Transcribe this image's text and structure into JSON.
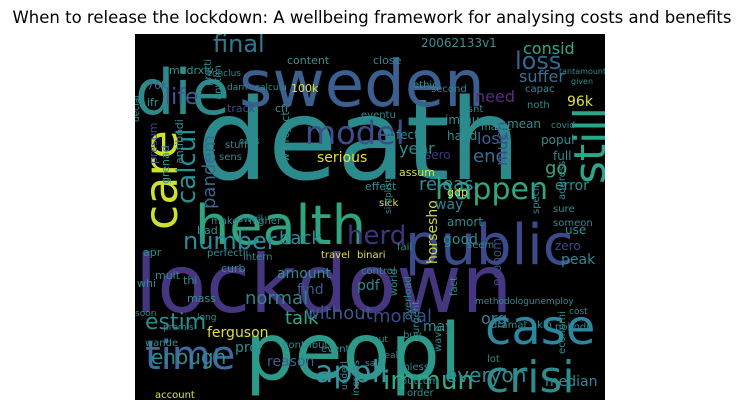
{
  "title": "When to release the lockdown: A wellbeing framework for analysing costs and benefits",
  "cloud": {
    "palette": [
      "#440154",
      "#3b528b",
      "#21908d",
      "#5dc863",
      "#fde725",
      "#31688e",
      "#35b779",
      "#472d7b"
    ],
    "words": [
      {
        "text": "death",
        "color": "#2a8a8c"
      },
      {
        "text": "lockdown",
        "color": "#46357f"
      },
      {
        "text": "peopl",
        "color": "#2b9a89"
      },
      {
        "text": "sweden",
        "color": "#3b5f8f"
      },
      {
        "text": "die",
        "color": "#2c8a8a"
      },
      {
        "text": "health",
        "color": "#2ea580"
      },
      {
        "text": "public",
        "color": "#3b4b8a"
      },
      {
        "text": "care",
        "color": "#cfe12f"
      },
      {
        "text": "still",
        "color": "#2ba68a"
      },
      {
        "text": "case",
        "color": "#2b87a0"
      },
      {
        "text": "crisi",
        "color": "#2f8c8c"
      },
      {
        "text": "time",
        "color": "#3e6aa0"
      },
      {
        "text": "model",
        "color": "#3e4d8b"
      },
      {
        "text": "happen",
        "color": "#32a67f"
      },
      {
        "text": "appli",
        "color": "#3a8fa0"
      },
      {
        "text": "immun",
        "color": "#30a98a"
      },
      {
        "text": "number",
        "color": "#2c8b9a"
      },
      {
        "text": "herd",
        "color": "#41337b"
      },
      {
        "text": "calcul",
        "color": "#2a8f90"
      },
      {
        "text": "life",
        "color": "#3e5b8f"
      },
      {
        "text": "final",
        "color": "#2f7a8e"
      },
      {
        "text": "loss",
        "color": "#31698f"
      },
      {
        "text": "estim",
        "color": "#2e8b8e"
      },
      {
        "text": "enough",
        "color": "#2f8a90"
      },
      {
        "text": "talk",
        "color": "#31a88a"
      },
      {
        "text": "everyon",
        "color": "#2e8c8f"
      },
      {
        "text": "pandem",
        "color": "#3e6591"
      },
      {
        "text": "releas",
        "color": "#2c8b9a"
      },
      {
        "text": "back",
        "color": "#2f8d9a"
      },
      {
        "text": "normal",
        "color": "#2f8590"
      },
      {
        "text": "without",
        "color": "#3a5a8e"
      },
      {
        "text": "mortal",
        "color": "#3b4a89"
      },
      {
        "text": "consid",
        "color": "#36a884"
      },
      {
        "text": "suffer",
        "color": "#3d6f96"
      },
      {
        "text": "need",
        "color": "#5a2f7a"
      },
      {
        "text": "year",
        "color": "#2e8f90"
      },
      {
        "text": "end",
        "color": "#3e6a92"
      },
      {
        "text": "go",
        "color": "#3da57e"
      },
      {
        "text": "lose",
        "color": "#3e6093"
      },
      {
        "text": "much",
        "color": "#3b4e8b"
      },
      {
        "text": "serious",
        "color": "#e2e237"
      },
      {
        "text": "amount",
        "color": "#2f8d92"
      },
      {
        "text": "ferguson",
        "color": "#dde042"
      },
      {
        "text": "median",
        "color": "#2f8a90"
      },
      {
        "text": "good",
        "color": "#2f8b90"
      },
      {
        "text": "org",
        "color": "#3e7a96"
      },
      {
        "text": "may",
        "color": "#2e8f90"
      },
      {
        "text": "96k",
        "color": "#dfe33a"
      },
      {
        "text": "horsesho",
        "color": "#cfdb3b"
      },
      {
        "text": "way",
        "color": "#2f8892"
      },
      {
        "text": "reason",
        "color": "#3e6090"
      },
      {
        "text": "proj",
        "color": "#2e8f90"
      },
      {
        "text": "pdf",
        "color": "#2f8790"
      },
      {
        "text": "find",
        "color": "#3b5a8e"
      },
      {
        "text": "econom",
        "color": "#3b4a89"
      },
      {
        "text": "peak",
        "color": "#2f8790"
      },
      {
        "text": "mean",
        "color": "#2f8f90"
      },
      {
        "text": "popul",
        "color": "#2e8f90"
      },
      {
        "text": "full",
        "color": "#2f8a90"
      },
      {
        "text": "error",
        "color": "#2e8f90"
      },
      {
        "text": "use",
        "color": "#2e8f90"
      },
      {
        "text": "zero",
        "color": "#3b4a89"
      },
      {
        "text": "sero",
        "color": "#41337b"
      },
      {
        "text": "hand",
        "color": "#2f8f90"
      },
      {
        "text": "infect",
        "color": "#2f8a90"
      },
      {
        "text": "immu",
        "color": "#2f8f90"
      },
      {
        "text": "amort",
        "color": "#2f8a90"
      },
      {
        "text": "assum",
        "color": "#dde042"
      },
      {
        "text": "gdp",
        "color": "#dde042"
      },
      {
        "text": "effect",
        "color": "#2f8f90"
      },
      {
        "text": "content",
        "color": "#3e8f90"
      },
      {
        "text": "close",
        "color": "#2f8a90"
      },
      {
        "text": "20062133v1",
        "color": "#3e8f90"
      },
      {
        "text": "medrxiv",
        "color": "#3e8f90"
      },
      {
        "text": "76k",
        "color": "#3e6591"
      },
      {
        "text": "100k",
        "color": "#dde042"
      },
      {
        "text": "cfr",
        "color": "#3e8f90"
      },
      {
        "text": "ifr",
        "color": "#3e8f90"
      },
      {
        "text": "track",
        "color": "#3e4a89"
      },
      {
        "text": "presum",
        "color": "#3b4a89"
      },
      {
        "text": "grenad",
        "color": "#2f8f90"
      },
      {
        "text": "antibodi",
        "color": "#2f8a90"
      },
      {
        "text": "apr",
        "color": "#2f8f90"
      },
      {
        "text": "mult",
        "color": "#2f8a90"
      },
      {
        "text": "whi",
        "color": "#2f8f90"
      },
      {
        "text": "thi",
        "color": "#2f8a90"
      },
      {
        "text": "mass",
        "color": "#2f8f90"
      },
      {
        "text": "curb",
        "color": "#2f8a90"
      },
      {
        "text": "bad",
        "color": "#2f8f90"
      },
      {
        "text": "make",
        "color": "#2f8a90"
      },
      {
        "text": "higher",
        "color": "#2f8f90"
      },
      {
        "text": "dwell",
        "color": "#2f8a90"
      },
      {
        "text": "travel",
        "color": "#dde042"
      },
      {
        "text": "binari",
        "color": "#dde042"
      },
      {
        "text": "sick",
        "color": "#dde042"
      },
      {
        "text": "address",
        "color": "#2f8a90"
      },
      {
        "text": "specif",
        "color": "#2f8a90"
      },
      {
        "text": "sure",
        "color": "#2f8f90"
      },
      {
        "text": "someon",
        "color": "#2f8a90"
      },
      {
        "text": "perfectli",
        "color": "#2f8f90"
      },
      {
        "text": "intern",
        "color": "#2f8a90"
      },
      {
        "text": "fail",
        "color": "#2f8f90"
      },
      {
        "text": "control",
        "color": "#2f8a90"
      },
      {
        "text": "world",
        "color": "#2f8f90"
      },
      {
        "text": "overload",
        "color": "#2f8a90"
      },
      {
        "text": "fact",
        "color": "#2f8f90"
      },
      {
        "text": "seem",
        "color": "#2f8a90"
      },
      {
        "text": "methodologunemploy",
        "color": "#2f8f90"
      },
      {
        "text": "cost",
        "color": "#2f8a90"
      },
      {
        "text": "economi",
        "color": "#2f8f90"
      },
      {
        "text": "dramat",
        "color": "#2f8a90"
      },
      {
        "text": "akin",
        "color": "#2f8f90"
      },
      {
        "text": "nobodi",
        "color": "#2f8a90"
      },
      {
        "text": "urgent",
        "color": "#2f8f90"
      },
      {
        "text": "wave",
        "color": "#2f8a90"
      },
      {
        "text": "buy",
        "color": "#2f8f90"
      },
      {
        "text": "unless",
        "color": "#2f8a90"
      },
      {
        "text": "outcom",
        "color": "#2f8f90"
      },
      {
        "text": "lot",
        "color": "#2f8a90"
      },
      {
        "text": "order",
        "color": "#2f8f90"
      },
      {
        "text": "increas",
        "color": "#2f8a90"
      },
      {
        "text": "account",
        "color": "#dde042"
      },
      {
        "text": "event",
        "color": "#2f8f90"
      },
      {
        "text": "contribut",
        "color": "#2f8a90"
      },
      {
        "text": "wande",
        "color": "#2f8f90"
      },
      {
        "text": "pretti",
        "color": "#2f8a90"
      },
      {
        "text": "anytim",
        "color": "#2f8f90"
      },
      {
        "text": "conclus",
        "color": "#2f8a90"
      },
      {
        "text": "darn",
        "color": "#2f8f90"
      },
      {
        "text": "calculu",
        "color": "#2f8a90"
      },
      {
        "text": "ethic",
        "color": "#2f8f90"
      },
      {
        "text": "second",
        "color": "#2f8a90"
      },
      {
        "text": "eventu",
        "color": "#2f8f90"
      },
      {
        "text": "isnt",
        "color": "#2f8a90"
      },
      {
        "text": "magic",
        "color": "#2f8f90"
      },
      {
        "text": "noth",
        "color": "#2f8a90"
      },
      {
        "text": "capac",
        "color": "#2f8f90"
      },
      {
        "text": "covid",
        "color": "#2f8a90"
      },
      {
        "text": "stuff",
        "color": "#2f8f90"
      },
      {
        "text": "sens",
        "color": "#2f8a90"
      },
      {
        "text": "caus",
        "color": "#2f8f90"
      },
      {
        "text": "simplist",
        "color": "#2f8a90"
      },
      {
        "text": "put",
        "color": "#2f8f90"
      },
      {
        "text": "real",
        "color": "#2f8a90"
      },
      {
        "text": "said",
        "color": "#2f8f90"
      },
      {
        "text": "premis",
        "color": "#2f8a90"
      },
      {
        "text": "long",
        "color": "#2f8f90"
      },
      {
        "text": "soon",
        "color": "#2f8a90"
      },
      {
        "text": "declar",
        "color": "#2f8f90"
      },
      {
        "text": "tantamount",
        "color": "#2f8a90"
      },
      {
        "text": "given",
        "color": "#2f8f90"
      },
      {
        "text": "underl",
        "color": "#2f8a90"
      },
      {
        "text": "w project",
        "color": "#2f8f90"
      }
    ]
  }
}
